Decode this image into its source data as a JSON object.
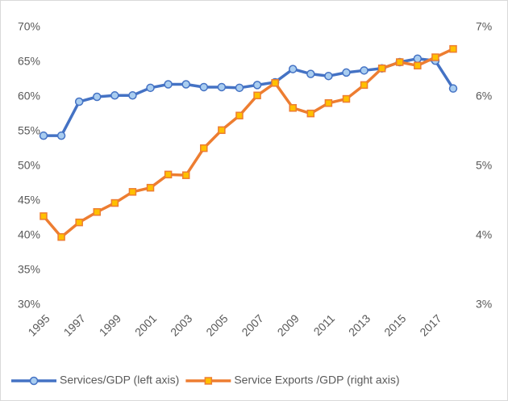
{
  "chart_data": {
    "type": "line",
    "categories": [
      "1995",
      null,
      "1997",
      null,
      "1999",
      null,
      "2001",
      null,
      "2003",
      null,
      "2005",
      null,
      "2007",
      null,
      "2009",
      null,
      "2011",
      null,
      "2013",
      null,
      "2015",
      null,
      "2017",
      null
    ],
    "series": [
      {
        "name": "Services/GDP (left axis)",
        "color": "#4472c4",
        "marker": "circle",
        "marker_fill": "#a9cdf0",
        "axis": "y",
        "values": [
          54.4,
          54.4,
          59.3,
          60.0,
          60.2,
          60.2,
          61.3,
          61.8,
          61.8,
          61.4,
          61.4,
          61.3,
          61.7,
          62.1,
          64.0,
          63.3,
          63.0,
          63.5,
          63.8,
          64.1,
          65.0,
          65.5,
          65.2,
          61.2
        ]
      },
      {
        "name": "Service Exports /GDP (right axis)",
        "color": "#ed7d31",
        "marker": "square",
        "marker_fill": "#ffc000",
        "axis": "y2",
        "values": [
          4.28,
          3.98,
          4.19,
          4.34,
          4.47,
          4.63,
          4.69,
          4.88,
          4.87,
          5.26,
          5.52,
          5.73,
          6.02,
          6.2,
          5.84,
          5.76,
          5.91,
          5.97,
          6.17,
          6.41,
          6.5,
          6.45,
          6.57,
          6.69
        ]
      }
    ],
    "ylim": [
      30,
      70
    ],
    "yticks": [
      {
        "value": 30,
        "label": "30%"
      },
      {
        "value": 35,
        "label": "35%"
      },
      {
        "value": 40,
        "label": "40%"
      },
      {
        "value": 45,
        "label": "45%"
      },
      {
        "value": 50,
        "label": "50%"
      },
      {
        "value": 55,
        "label": "55%"
      },
      {
        "value": 60,
        "label": "60%"
      },
      {
        "value": 65,
        "label": "65%"
      },
      {
        "value": 70,
        "label": "70%"
      }
    ],
    "y2lim": [
      3,
      7
    ],
    "y2ticks": [
      {
        "value": 3,
        "label": "3%"
      },
      {
        "value": 4,
        "label": "4%"
      },
      {
        "value": 5,
        "label": "5%"
      },
      {
        "value": 6,
        "label": "6%"
      },
      {
        "value": 7,
        "label": "7%"
      }
    ],
    "grid": false,
    "legend": "bottom"
  }
}
